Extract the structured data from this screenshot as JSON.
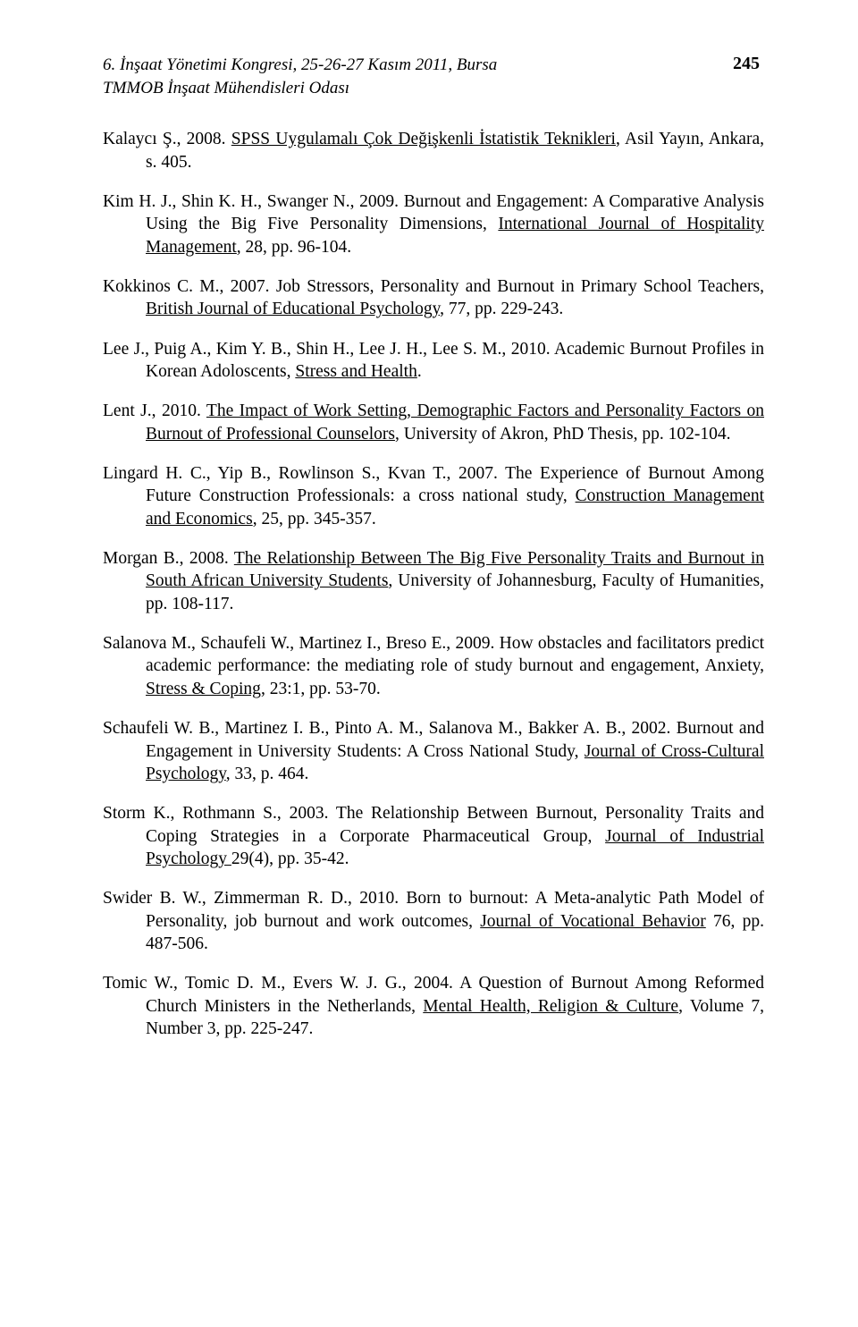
{
  "header": {
    "line1": "6. İnşaat Yönetimi Kongresi, 25-26-27 Kasım 2011, Bursa",
    "line2": "TMMOB İnşaat Mühendisleri Odası",
    "page_number": "245"
  },
  "refs": {
    "r1": {
      "t1": "Kalaycı Ş., 2008. ",
      "u1": "SPSS Uygulamalı Çok Değişkenli İstatistik Teknikleri",
      "t2": ", Asil Yayın, Ankara, s. 405."
    },
    "r2": {
      "t1": "Kim H. J., Shin K. H., Swanger N., 2009. Burnout and Engagement: A Comparative Analysis Using the Big Five Personality Dimensions, ",
      "u1": "International Journal of Hospitality Management",
      "t2": ", 28, pp. 96-104."
    },
    "r3": {
      "t1": "Kokkinos C. M., 2007. Job Stressors, Personality and Burnout in Primary School Teachers, ",
      "u1": "British Journal of Educational Psychology",
      "t2": ", 77, pp. 229-243."
    },
    "r4": {
      "t1": "Lee J., Puig A., Kim Y. B., Shin H., Lee J. H., Lee S. M., 2010. Academic Burnout Profiles in Korean Adoloscents, ",
      "u1": "Stress and Health",
      "t2": "."
    },
    "r5": {
      "t1": "Lent J., 2010. ",
      "u1": "The Impact of Work Setting, Demographic Factors and Personality Factors on Burnout of Professional Counselors",
      "t2": ", University of Akron, PhD Thesis, pp. 102-104."
    },
    "r6": {
      "t1": "Lingard H. C., Yip B., Rowlinson S., Kvan T., 2007. The Experience of Burnout Among Future Construction Professionals: a cross national study, ",
      "u1": "Construction Management and Economics",
      "t2": ", 25, pp. 345-357."
    },
    "r7": {
      "t1": "Morgan B., 2008. ",
      "u1": "The Relationship Between The Big Five Personality Traits and Burnout in South African University Students",
      "t2": ", University of Johannesburg, Faculty of Humanities, pp. 108-117."
    },
    "r8": {
      "t1": "Salanova M., Schaufeli W., Martinez I., Breso E., 2009. How obstacles and facilitators predict academic performance: the mediating role of study burnout and engagement, Anxiety, ",
      "u1": "Stress & Coping",
      "t2": ", 23:1, pp. 53-70."
    },
    "r9": {
      "t1": "Schaufeli W. B., Martinez I. B., Pinto A. M., Salanova M., Bakker A. B., 2002. Burnout and Engagement in University Students: A Cross National Study, ",
      "u1": "Journal of Cross-Cultural Psychology",
      "t2": ", 33, p. 464."
    },
    "r10": {
      "t1": "Storm K., Rothmann S., 2003. The Relationship Between Burnout, Personality Traits and Coping Strategies in a Corporate Pharmaceutical Group, ",
      "u1": "Journal of Industrial Psychology ",
      "t2": "29(4), pp. 35-42."
    },
    "r11": {
      "t1": "Swider B. W., Zimmerman R. D., 2010. Born to burnout: A Meta-analytic Path Model of Personality, job burnout and work outcomes, ",
      "u1": "Journal of Vocational Behavior",
      "t2": " 76, pp. 487-506."
    },
    "r12": {
      "t1": "Tomic W., Tomic D. M., Evers W. J. G., 2004. A Question of Burnout Among Reformed Church Ministers in the Netherlands, ",
      "u1": "Mental Health, Religion & Culture",
      "t2": ", Volume 7, Number 3, pp. 225-247."
    }
  }
}
